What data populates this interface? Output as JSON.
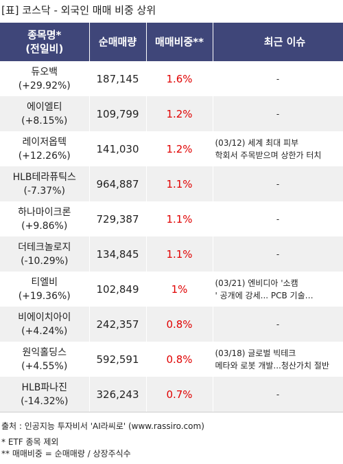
{
  "title": "[표] 코스닥 - 외국인 매매 비중 상위",
  "headers": {
    "name_line1": "종목명*",
    "name_line2": "(전일비)",
    "net_volume": "순매매량",
    "ratio": "매매비중**",
    "issue": "최근 이슈"
  },
  "rows": [
    {
      "name": "듀오백",
      "change": "(+29.92%)",
      "net_volume": "187,145",
      "ratio": "1.6%",
      "issue_line1": "-",
      "issue_line2": ""
    },
    {
      "name": "에이엘티",
      "change": "(+8.15%)",
      "net_volume": "109,799",
      "ratio": "1.2%",
      "issue_line1": "-",
      "issue_line2": ""
    },
    {
      "name": "레이저옵텍",
      "change": "(+12.26%)",
      "net_volume": "141,030",
      "ratio": "1.2%",
      "issue_line1": "(03/12) 세계 최대 피부",
      "issue_line2": "학회서 주목받으며 상한가 터치"
    },
    {
      "name": "HLB테라퓨틱스",
      "change": "(-7.37%)",
      "net_volume": "964,887",
      "ratio": "1.1%",
      "issue_line1": "-",
      "issue_line2": ""
    },
    {
      "name": "하나마이크론",
      "change": "(+9.86%)",
      "net_volume": "729,387",
      "ratio": "1.1%",
      "issue_line1": "-",
      "issue_line2": ""
    },
    {
      "name": "더테크놀로지",
      "change": "(-10.29%)",
      "net_volume": "134,845",
      "ratio": "1.1%",
      "issue_line1": "-",
      "issue_line2": ""
    },
    {
      "name": "티엘비",
      "change": "(+19.36%)",
      "net_volume": "102,849",
      "ratio": "1%",
      "issue_line1": "(03/21) 엔비디아 '소캠",
      "issue_line2": "' 공개에 강세... PCB 기술…"
    },
    {
      "name": "비에이치아이",
      "change": "(+4.24%)",
      "net_volume": "242,357",
      "ratio": "0.8%",
      "issue_line1": "-",
      "issue_line2": ""
    },
    {
      "name": "원익홀딩스",
      "change": "(+4.55%)",
      "net_volume": "592,591",
      "ratio": "0.8%",
      "issue_line1": "(03/18) 글로벌 빅테크",
      "issue_line2": "메타와 로봇 개발...청산가치 절반"
    },
    {
      "name": "HLB파나진",
      "change": "(-14.32%)",
      "net_volume": "326,243",
      "ratio": "0.7%",
      "issue_line1": "-",
      "issue_line2": ""
    }
  ],
  "footer": {
    "source": "출처 : 인공지능 투자비서 'AI라씨로' (www.rassiro.com)",
    "note1": "* ETF 종목 제외",
    "note2": "** 매매비중 = 순매매량 / 상장주식수"
  },
  "colors": {
    "header_bg": "#3f4679",
    "ratio_text": "#e00000",
    "stripe": "#f0f0f0"
  }
}
